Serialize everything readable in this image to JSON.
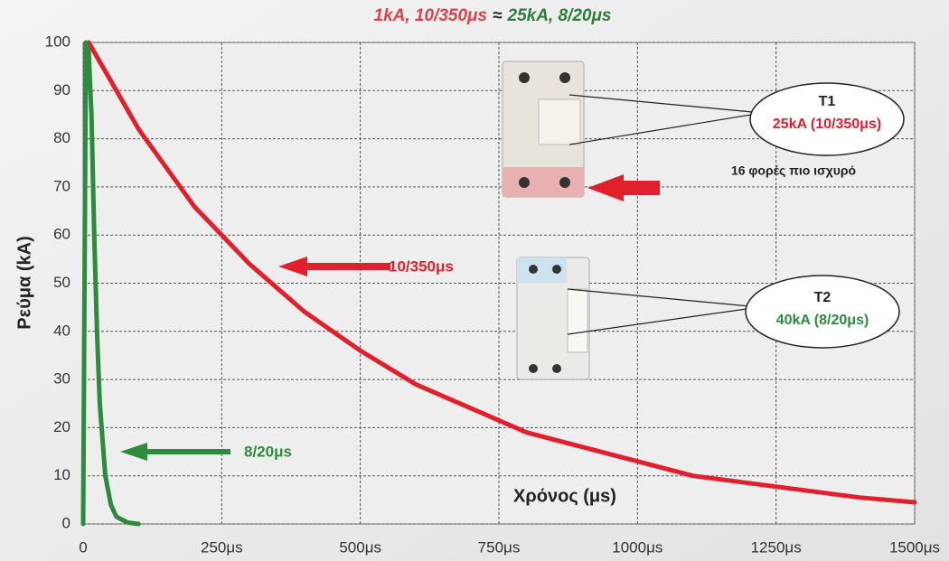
{
  "chart_data": {
    "type": "line",
    "title": [
      "1kA, 10/350μs",
      "≈",
      "25kA, 8/20μs"
    ],
    "title_colors": [
      "#e0404a",
      "#222222",
      "#2e7d3a"
    ],
    "xlabel": "Χρόνος (μs)",
    "ylabel": "Ρεύμα (kA)",
    "xlim": [
      0,
      1500
    ],
    "ylim": [
      0,
      100
    ],
    "xticks": [
      0,
      {
        "value": 250,
        "label": "250μs"
      },
      {
        "value": 500,
        "label": "500μs"
      },
      {
        "value": 750,
        "label": "750μs"
      },
      {
        "value": 1000,
        "label": "1000μs"
      },
      {
        "value": 1250,
        "label": "1250μs"
      },
      {
        "value": 1500,
        "label": "1500μs"
      }
    ],
    "yticks": [
      0,
      10,
      20,
      30,
      40,
      50,
      60,
      70,
      80,
      90,
      100
    ],
    "grid": true,
    "series": [
      {
        "name": "10/350μs",
        "color": "#e0202c",
        "x": [
          10,
          50,
          100,
          150,
          200,
          250,
          300,
          400,
          500,
          600,
          700,
          800,
          900,
          1000,
          1100,
          1200,
          1300,
          1400,
          1500
        ],
        "values": [
          100,
          92,
          82,
          74,
          66,
          60,
          54,
          44,
          36,
          29,
          24,
          19,
          16,
          13,
          10,
          8.5,
          7,
          5.5,
          4.5
        ]
      },
      {
        "name": "8/20μs",
        "color": "#2e8b3e",
        "x": [
          0,
          5,
          10,
          15,
          20,
          25,
          30,
          40,
          50,
          60,
          80,
          100
        ],
        "values": [
          0,
          100,
          98,
          85,
          60,
          40,
          25,
          10,
          4,
          1.5,
          0.3,
          0
        ]
      }
    ],
    "devices": [
      {
        "name": "T1",
        "rating": "25kA (10/350μs)",
        "color": "#e0202c"
      },
      {
        "name": "T2",
        "rating": "40kA (8/20μs)",
        "color": "#2e8b3e"
      }
    ],
    "note": "16 φορές πιο ισχυρό"
  }
}
